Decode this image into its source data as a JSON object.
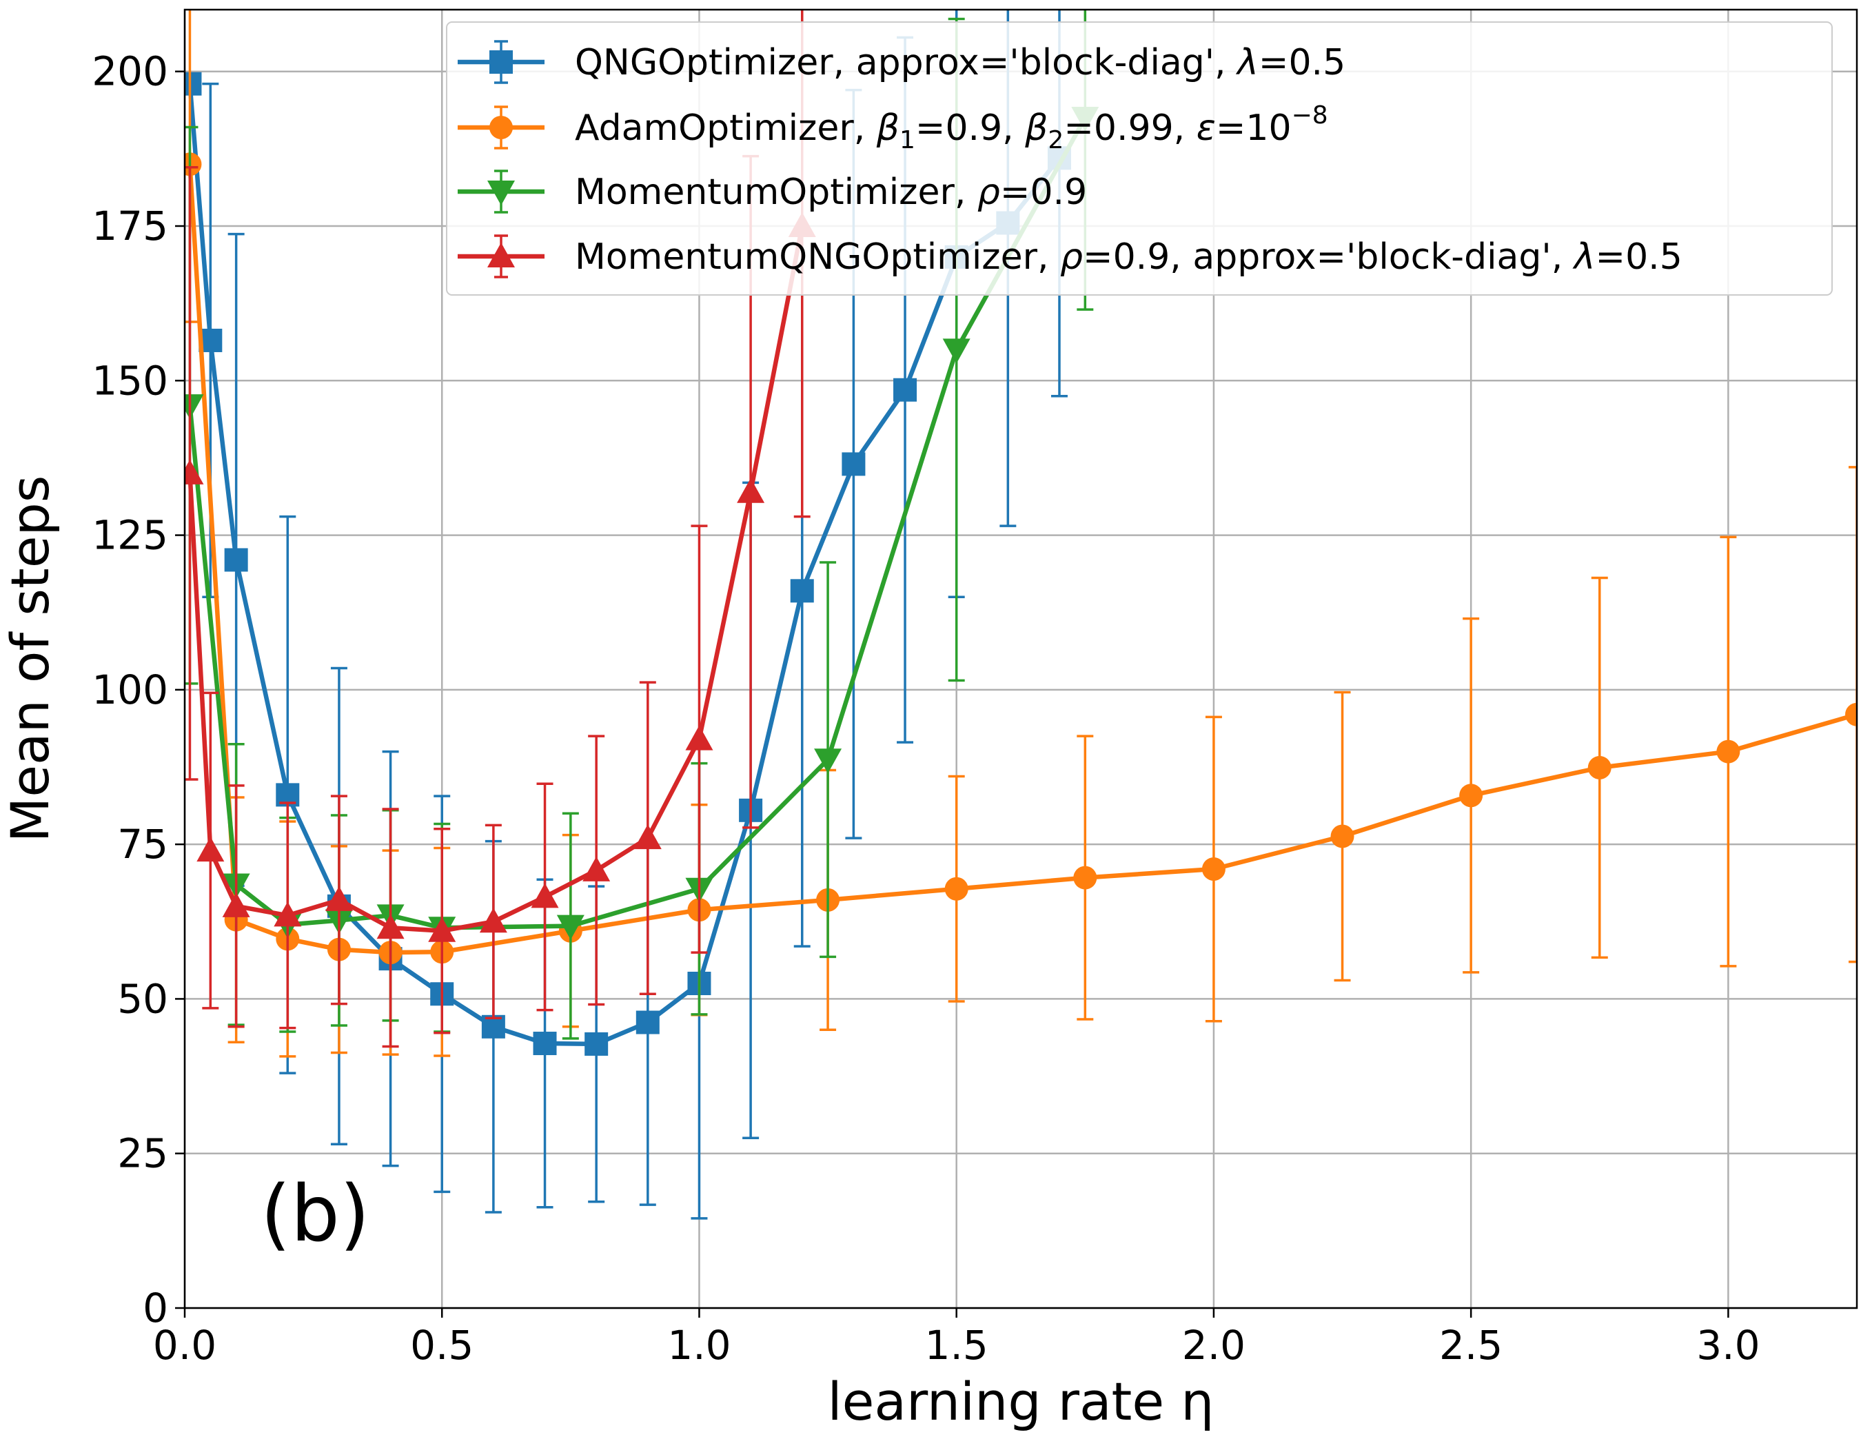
{
  "chart_data": {
    "type": "line",
    "xlabel": "learning rate η",
    "ylabel": "Mean of steps",
    "panel_label": "(b)",
    "xlim": [
      0.0,
      3.25
    ],
    "ylim": [
      0,
      210
    ],
    "x_ticks": [
      0.0,
      0.5,
      1.0,
      1.5,
      2.0,
      2.5,
      3.0
    ],
    "x_tick_labels": [
      "0.0",
      "0.5",
      "1.0",
      "1.5",
      "2.0",
      "2.5",
      "3.0"
    ],
    "y_ticks": [
      0,
      25,
      50,
      75,
      100,
      125,
      150,
      175,
      200
    ],
    "y_tick_labels": [
      "0",
      "25",
      "50",
      "75",
      "100",
      "125",
      "150",
      "175",
      "200"
    ],
    "grid": true,
    "legend_position": "top-right",
    "series": [
      {
        "name": "QNGOptimizer, approx='block-diag', λ=0.5",
        "color": "#1f77b4",
        "marker": "square",
        "points": [
          {
            "x": 0.01,
            "y": 198,
            "err": 0
          },
          {
            "x": 0.05,
            "y": 156.5,
            "err": 41.5
          },
          {
            "x": 0.1,
            "y": 121,
            "err": 52.7
          },
          {
            "x": 0.2,
            "y": 83,
            "err": 45
          },
          {
            "x": 0.3,
            "y": 65,
            "err": 38.5
          },
          {
            "x": 0.4,
            "y": 56.5,
            "err": 33.5
          },
          {
            "x": 0.5,
            "y": 50.8,
            "err": 32
          },
          {
            "x": 0.6,
            "y": 45.5,
            "err": 30
          },
          {
            "x": 0.7,
            "y": 42.8,
            "err": 26.5
          },
          {
            "x": 0.8,
            "y": 42.7,
            "err": 25.5
          },
          {
            "x": 0.9,
            "y": 46.2,
            "err": 29.5
          },
          {
            "x": 1.0,
            "y": 52.5,
            "err": 38
          },
          {
            "x": 1.1,
            "y": 80.5,
            "err": 53
          },
          {
            "x": 1.2,
            "y": 116,
            "err": 57.5
          },
          {
            "x": 1.3,
            "y": 136.5,
            "err": 60.5
          },
          {
            "x": 1.4,
            "y": 148.5,
            "err": 57
          },
          {
            "x": 1.5,
            "y": 170,
            "err": 55
          },
          {
            "x": 1.6,
            "y": 175.5,
            "err": 49
          },
          {
            "x": 1.7,
            "y": 186,
            "err": 38.5
          }
        ]
      },
      {
        "name": "AdamOptimizer, β1=0.9, β2=0.99, ε=10−8",
        "color": "#ff7f0e",
        "marker": "circle",
        "points": [
          {
            "x": 0.01,
            "y": 185,
            "err": 25.5
          },
          {
            "x": 0.1,
            "y": 62.8,
            "err": 19.8
          },
          {
            "x": 0.2,
            "y": 59.7,
            "err": 19
          },
          {
            "x": 0.3,
            "y": 58,
            "err": 16.7
          },
          {
            "x": 0.4,
            "y": 57.5,
            "err": 16.5
          },
          {
            "x": 0.5,
            "y": 57.6,
            "err": 16.8
          },
          {
            "x": 0.75,
            "y": 61,
            "err": 15.5
          },
          {
            "x": 1.0,
            "y": 64.4,
            "err": 17
          },
          {
            "x": 1.25,
            "y": 66,
            "err": 21
          },
          {
            "x": 1.5,
            "y": 67.8,
            "err": 18.2
          },
          {
            "x": 1.75,
            "y": 69.6,
            "err": 22.9
          },
          {
            "x": 2.0,
            "y": 71,
            "err": 24.6
          },
          {
            "x": 2.25,
            "y": 76.3,
            "err": 23.3
          },
          {
            "x": 2.5,
            "y": 82.9,
            "err": 28.6
          },
          {
            "x": 2.75,
            "y": 87.4,
            "err": 30.7
          },
          {
            "x": 3.0,
            "y": 90,
            "err": 34.7
          },
          {
            "x": 3.25,
            "y": 96,
            "err": 40
          }
        ]
      },
      {
        "name": "MomentumOptimizer, ρ=0.9",
        "color": "#2ca02c",
        "marker": "triangle-down",
        "points": [
          {
            "x": 0.01,
            "y": 146,
            "err": 45
          },
          {
            "x": 0.1,
            "y": 68.5,
            "err": 22.7
          },
          {
            "x": 0.2,
            "y": 62,
            "err": 17.3
          },
          {
            "x": 0.3,
            "y": 62.7,
            "err": 17
          },
          {
            "x": 0.4,
            "y": 63.5,
            "err": 17
          },
          {
            "x": 0.5,
            "y": 61.5,
            "err": 16.8
          },
          {
            "x": 0.75,
            "y": 61.8,
            "err": 18.2
          },
          {
            "x": 1.0,
            "y": 67.8,
            "err": 20.3
          },
          {
            "x": 1.25,
            "y": 88.7,
            "err": 31.9
          },
          {
            "x": 1.5,
            "y": 155,
            "err": 53.5
          },
          {
            "x": 1.75,
            "y": 192.5,
            "err": 31
          }
        ]
      },
      {
        "name": "MomentumQNGOptimizer, ρ=0.9, approx='block-diag', λ=0.5",
        "color": "#d62728",
        "marker": "triangle-up",
        "points": [
          {
            "x": 0.01,
            "y": 135,
            "err": 49.5
          },
          {
            "x": 0.05,
            "y": 74,
            "err": 25.5
          },
          {
            "x": 0.1,
            "y": 65,
            "err": 19.5
          },
          {
            "x": 0.2,
            "y": 63.5,
            "err": 18.2
          },
          {
            "x": 0.3,
            "y": 66,
            "err": 16.8
          },
          {
            "x": 0.4,
            "y": 61.5,
            "err": 19.2
          },
          {
            "x": 0.5,
            "y": 61,
            "err": 16.5
          },
          {
            "x": 0.6,
            "y": 62.5,
            "err": 15.6
          },
          {
            "x": 0.7,
            "y": 66.5,
            "err": 18.3
          },
          {
            "x": 0.8,
            "y": 70.8,
            "err": 21.7
          },
          {
            "x": 0.9,
            "y": 76,
            "err": 25.2
          },
          {
            "x": 1.0,
            "y": 92,
            "err": 34.5
          },
          {
            "x": 1.1,
            "y": 132,
            "err": 54.3
          },
          {
            "x": 1.2,
            "y": 175,
            "err": 47
          }
        ]
      }
    ]
  }
}
